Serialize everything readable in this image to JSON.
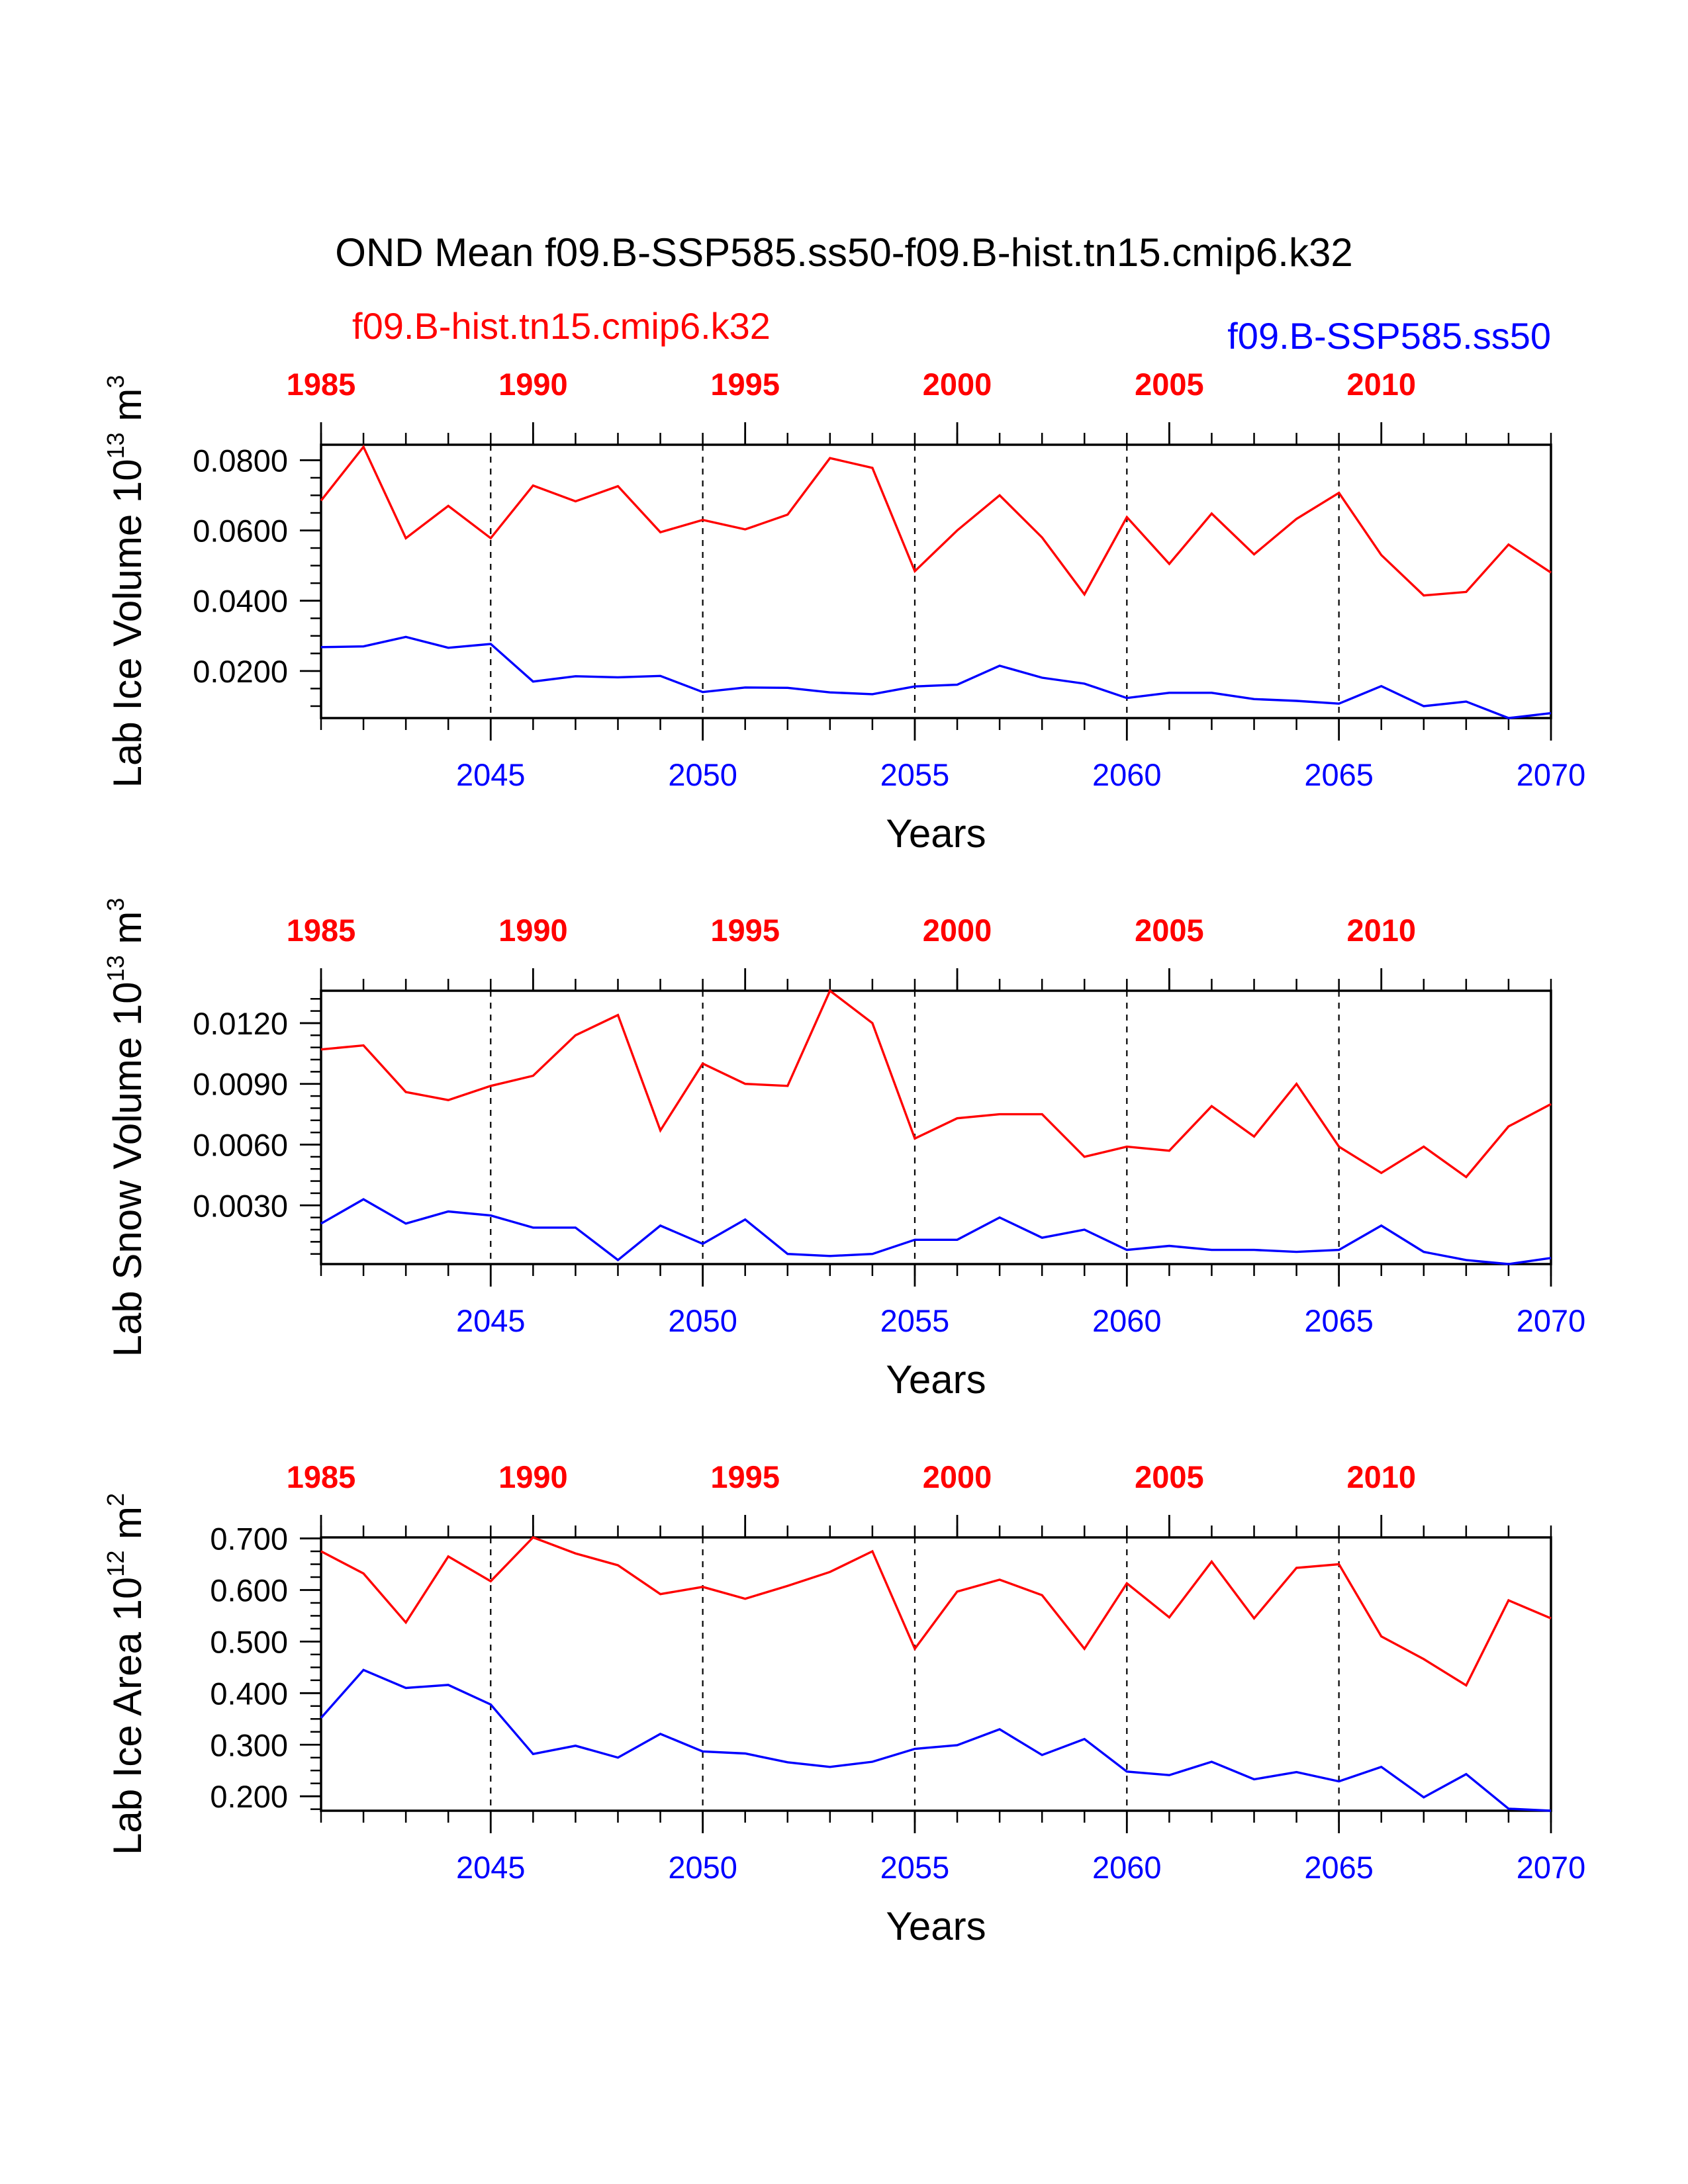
{
  "header": {
    "title": "OND Mean f09.B-SSP585.ss50-f09.B-hist.tn15.cmip6.k32",
    "hist_label": "f09.B-hist.tn15.cmip6.k32",
    "ssp_label": "f09.B-SSP585.ss50"
  },
  "colors": {
    "hist": "#ff0000",
    "ssp": "#0000ff",
    "axis": "#000000"
  },
  "chart_data": [
    {
      "type": "line",
      "ylabel": "Lab Ice Volume 10",
      "ylabel_exp": "13",
      "ylabel_unit": " m",
      "ylabel_unit_exp": "3",
      "xlabel": "Years",
      "ylim": [
        0.0066,
        0.0844
      ],
      "y_ticks": [
        0.02,
        0.04,
        0.06,
        0.08
      ],
      "y_tick_labels": [
        "0.0200",
        "0.0400",
        "0.0600",
        "0.0800"
      ],
      "y_minor": 0.005,
      "top_ticks": [
        "1985",
        "1990",
        "1995",
        "2000",
        "2005",
        "2010"
      ],
      "bottom_ticks": [
        "2045",
        "2050",
        "2055",
        "2060",
        "2065",
        "2070"
      ],
      "x": [
        2041,
        2042,
        2043,
        2044,
        2045,
        2046,
        2047,
        2048,
        2049,
        2050,
        2051,
        2052,
        2053,
        2054,
        2055,
        2056,
        2057,
        2058,
        2059,
        2060,
        2061,
        2062,
        2063,
        2064,
        2065,
        2066,
        2067,
        2068,
        2069,
        2070
      ],
      "x_top": [
        1985,
        1986,
        1987,
        1988,
        1989,
        1990,
        1991,
        1992,
        1993,
        1994,
        1995,
        1996,
        1997,
        1998,
        1999,
        2000,
        2001,
        2002,
        2003,
        2004,
        2005,
        2006,
        2007,
        2008,
        2009,
        2010,
        2011,
        2012,
        2013,
        2014
      ],
      "series": [
        {
          "name": "f09.B-hist.tn15.cmip6.k32",
          "values": [
            0.0685,
            0.0838,
            0.0578,
            0.067,
            0.0578,
            0.0728,
            0.0683,
            0.0726,
            0.0595,
            0.063,
            0.0603,
            0.0645,
            0.0806,
            0.0778,
            0.0484,
            0.06,
            0.07,
            0.058,
            0.0418,
            0.0638,
            0.0505,
            0.0648,
            0.0532,
            0.0633,
            0.0707,
            0.053,
            0.0415,
            0.0425,
            0.056,
            0.048
          ]
        },
        {
          "name": "f09.B-SSP585.ss50",
          "values": [
            0.0268,
            0.027,
            0.0297,
            0.0266,
            0.0277,
            0.017,
            0.0185,
            0.0182,
            0.0186,
            0.014,
            0.0153,
            0.0152,
            0.0139,
            0.0134,
            0.0156,
            0.0161,
            0.0215,
            0.0181,
            0.0164,
            0.0123,
            0.0138,
            0.0138,
            0.012,
            0.0115,
            0.0107,
            0.0157,
            0.01,
            0.0113,
            0.0066,
            0.008
          ]
        }
      ]
    },
    {
      "type": "line",
      "ylabel": "Lab Snow Volume 10",
      "ylabel_exp": "13",
      "ylabel_unit": " m",
      "ylabel_unit_exp": "3",
      "xlabel": "Years",
      "ylim": [
        0.0001,
        0.0136
      ],
      "y_ticks": [
        0.003,
        0.006,
        0.009,
        0.012
      ],
      "y_tick_labels": [
        "0.0030",
        "0.0060",
        "0.0090",
        "0.0120"
      ],
      "y_minor": 0.0006,
      "top_ticks": [
        "1985",
        "1990",
        "1995",
        "2000",
        "2005",
        "2010"
      ],
      "bottom_ticks": [
        "2045",
        "2050",
        "2055",
        "2060",
        "2065",
        "2070"
      ],
      "x": [
        2041,
        2042,
        2043,
        2044,
        2045,
        2046,
        2047,
        2048,
        2049,
        2050,
        2051,
        2052,
        2053,
        2054,
        2055,
        2056,
        2057,
        2058,
        2059,
        2060,
        2061,
        2062,
        2063,
        2064,
        2065,
        2066,
        2067,
        2068,
        2069,
        2070
      ],
      "x_top": [
        1985,
        1986,
        1987,
        1988,
        1989,
        1990,
        1991,
        1992,
        1993,
        1994,
        1995,
        1996,
        1997,
        1998,
        1999,
        2000,
        2001,
        2002,
        2003,
        2004,
        2005,
        2006,
        2007,
        2008,
        2009,
        2010,
        2011,
        2012,
        2013,
        2014
      ],
      "series": [
        {
          "name": "f09.B-hist.tn15.cmip6.k32",
          "values": [
            0.0107,
            0.0109,
            0.0086,
            0.0082,
            0.0089,
            0.0094,
            0.0114,
            0.0124,
            0.0067,
            0.01,
            0.009,
            0.0089,
            0.0136,
            0.012,
            0.0063,
            0.0073,
            0.0075,
            0.0075,
            0.0054,
            0.0059,
            0.0057,
            0.0079,
            0.0064,
            0.009,
            0.0059,
            0.0046,
            0.0059,
            0.0044,
            0.0069,
            0.008
          ]
        },
        {
          "name": "f09.B-SSP585.ss50",
          "values": [
            0.0021,
            0.0033,
            0.0021,
            0.0027,
            0.0025,
            0.0019,
            0.0019,
            0.0003,
            0.002,
            0.0011,
            0.0023,
            0.0006,
            0.0005,
            0.0006,
            0.0013,
            0.0013,
            0.0024,
            0.0014,
            0.0018,
            0.0008,
            0.001,
            0.0008,
            0.0008,
            0.0007,
            0.0008,
            0.002,
            0.0007,
            0.0003,
            0.0001,
            0.0004
          ]
        }
      ]
    },
    {
      "type": "line",
      "ylabel": "Lab Ice Area 10",
      "ylabel_exp": "12",
      "ylabel_unit": " m",
      "ylabel_unit_exp": "2",
      "xlabel": "Years",
      "ylim": [
        0.172,
        0.702
      ],
      "y_ticks": [
        0.2,
        0.3,
        0.4,
        0.5,
        0.6,
        0.7
      ],
      "y_tick_labels": [
        "0.200",
        "0.300",
        "0.400",
        "0.500",
        "0.600",
        "0.700"
      ],
      "y_minor": 0.025,
      "top_ticks": [
        "1985",
        "1990",
        "1995",
        "2000",
        "2005",
        "2010"
      ],
      "bottom_ticks": [
        "2045",
        "2050",
        "2055",
        "2060",
        "2065",
        "2070"
      ],
      "x": [
        2041,
        2042,
        2043,
        2044,
        2045,
        2046,
        2047,
        2048,
        2049,
        2050,
        2051,
        2052,
        2053,
        2054,
        2055,
        2056,
        2057,
        2058,
        2059,
        2060,
        2061,
        2062,
        2063,
        2064,
        2065,
        2066,
        2067,
        2068,
        2069,
        2070
      ],
      "x_top": [
        1985,
        1986,
        1987,
        1988,
        1989,
        1990,
        1991,
        1992,
        1993,
        1994,
        1995,
        1996,
        1997,
        1998,
        1999,
        2000,
        2001,
        2002,
        2003,
        2004,
        2005,
        2006,
        2007,
        2008,
        2009,
        2010,
        2011,
        2012,
        2013,
        2014
      ],
      "series": [
        {
          "name": "f09.B-hist.tn15.cmip6.k32",
          "values": [
            0.675,
            0.632,
            0.537,
            0.665,
            0.617,
            0.702,
            0.671,
            0.648,
            0.592,
            0.606,
            0.583,
            0.608,
            0.635,
            0.675,
            0.486,
            0.597,
            0.62,
            0.59,
            0.486,
            0.613,
            0.547,
            0.655,
            0.545,
            0.643,
            0.65,
            0.51,
            0.466,
            0.415,
            0.58,
            0.545
          ]
        },
        {
          "name": "f09.B-SSP585.ss50",
          "values": [
            0.352,
            0.445,
            0.41,
            0.416,
            0.378,
            0.282,
            0.298,
            0.275,
            0.321,
            0.287,
            0.283,
            0.266,
            0.257,
            0.267,
            0.292,
            0.299,
            0.33,
            0.28,
            0.311,
            0.248,
            0.241,
            0.267,
            0.233,
            0.247,
            0.229,
            0.257,
            0.198,
            0.243,
            0.176,
            0.172
          ]
        }
      ]
    }
  ]
}
